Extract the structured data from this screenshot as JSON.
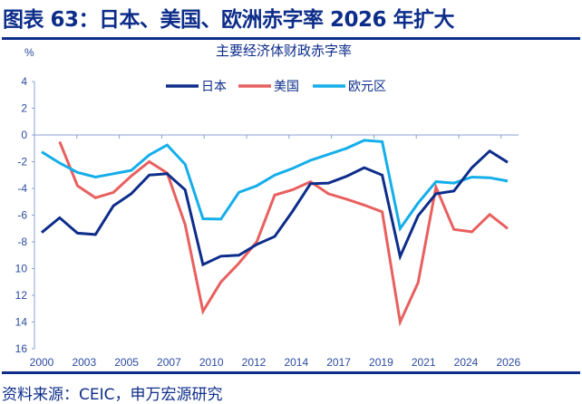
{
  "header": {
    "title": "图表 63：日本、美国、欧洲赤字率 2026 年扩大"
  },
  "footer": {
    "source": "资料来源：CEIC，申万宏源研究"
  },
  "chart_data": {
    "type": "line",
    "title": "主要经济体财政赤字率",
    "ylabel": "%",
    "xlabel": "",
    "x": [
      2000,
      2001,
      2002,
      2003,
      2004,
      2005,
      2006,
      2007,
      2008,
      2009,
      2010,
      2011,
      2012,
      2013,
      2014,
      2015,
      2016,
      2017,
      2018,
      2019,
      2020,
      2021,
      2022,
      2023,
      2024,
      2025,
      2026
    ],
    "x_tick_labels": [
      "2000",
      "2003",
      "2005",
      "2007",
      "2010",
      "2012",
      "2014",
      "2017",
      "2019",
      "2021",
      "2024",
      "2026"
    ],
    "y_tick_labels": [
      "4",
      "2",
      "0",
      "-2",
      "-4",
      "-6",
      "-8",
      "10",
      "12",
      "14",
      "16"
    ],
    "y_ticks": [
      4,
      2,
      0,
      -2,
      -4,
      -6,
      -8,
      -10,
      -12,
      -14,
      -16
    ],
    "ylim": [
      -16,
      4
    ],
    "grid": false,
    "legend_position": "top-center",
    "series": [
      {
        "name": "日本",
        "color": "#0d2d8a",
        "values": [
          -7.3,
          -6.2,
          -7.35,
          -7.45,
          -5.3,
          -4.4,
          -3.0,
          -2.9,
          -4.1,
          -9.7,
          -9.07,
          -9.0,
          -8.2,
          -7.6,
          -5.7,
          -3.65,
          -3.6,
          -3.1,
          -2.45,
          -3.0,
          -9.1,
          -6.05,
          -4.4,
          -4.2,
          -2.45,
          -1.2,
          -2.05
        ]
      },
      {
        "name": "美国",
        "color": "#e8605f",
        "values": [
          null,
          -0.5,
          -3.8,
          -4.7,
          -4.3,
          -3.07,
          -2.0,
          -2.85,
          -6.7,
          -13.2,
          -11.0,
          -9.6,
          -8.0,
          -4.5,
          -4.1,
          -3.5,
          -4.4,
          -4.8,
          -5.25,
          -5.75,
          -14.0,
          -11.05,
          -3.9,
          -7.07,
          -7.25,
          -5.95,
          -7.0
        ]
      },
      {
        "name": "欧元区",
        "color": "#14aeea",
        "values": [
          -1.27,
          -2.1,
          -2.8,
          -3.15,
          -2.9,
          -2.65,
          -1.5,
          -0.75,
          -2.2,
          -6.27,
          -6.3,
          -4.3,
          -3.8,
          -3.0,
          -2.5,
          -1.9,
          -1.45,
          -1.0,
          -0.4,
          -0.5,
          -7.0,
          -5.1,
          -3.5,
          -3.6,
          -3.15,
          -3.2,
          -3.45
        ]
      }
    ]
  }
}
